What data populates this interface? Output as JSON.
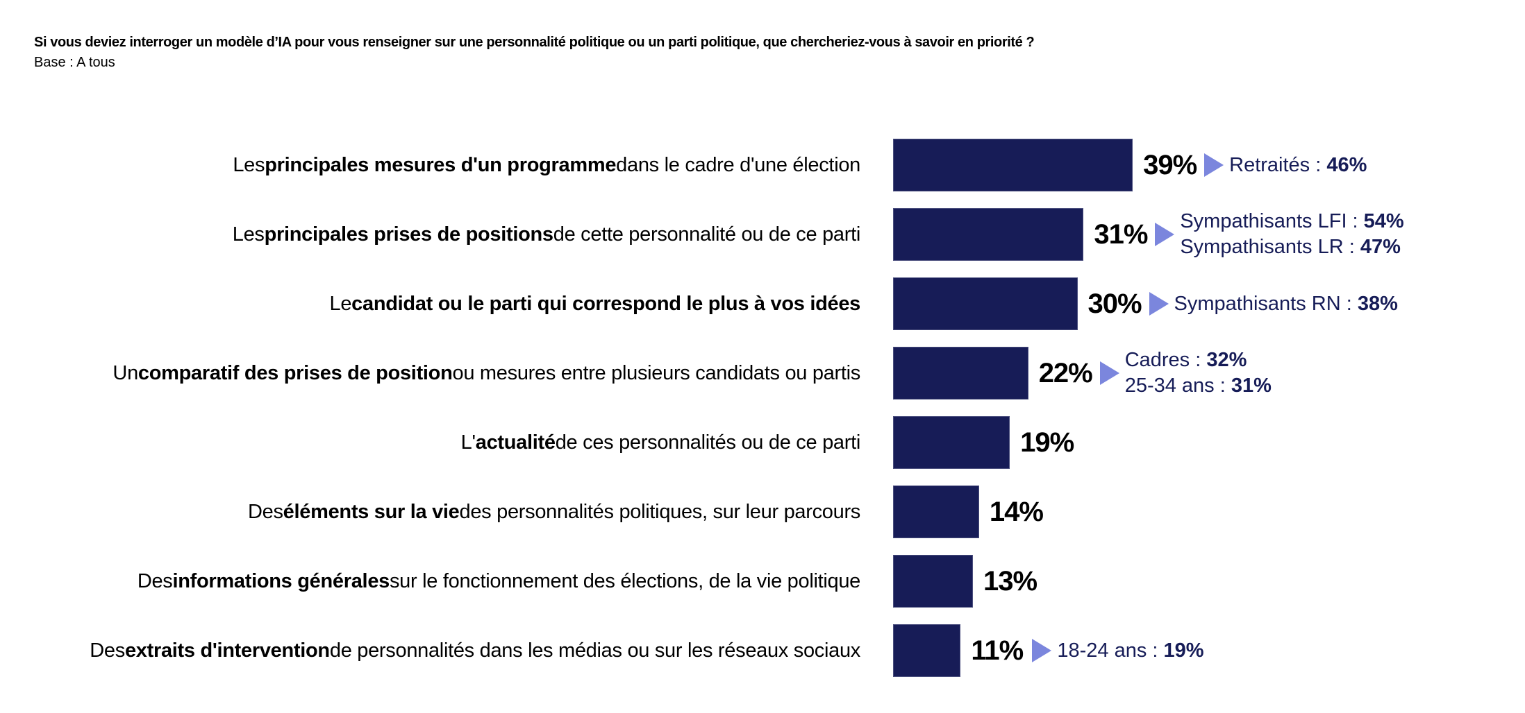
{
  "header": {
    "title": "Si vous deviez interroger un modèle d’IA pour vous renseigner sur une personnalité politique ou un parti politique, que chercheriez-vous à savoir en priorité ?",
    "subtitle": "Base : A tous"
  },
  "colors": {
    "bar": "#171c57",
    "arrow": "#7b86dd",
    "callout_text": "#161c57"
  },
  "chart_data": {
    "type": "bar",
    "orientation": "horizontal",
    "title": "Si vous deviez interroger un modèle d’IA pour vous renseigner sur une personnalité politique ou un parti politique, que chercheriez-vous à savoir en priorité ?",
    "subtitle": "Base : A tous",
    "xlabel": "",
    "ylabel": "",
    "xlim": [
      0,
      100
    ],
    "unit": "%",
    "grid": false,
    "categories": [
      "Les principales mesures d'un programme dans le cadre d'une élection",
      "Les principales prises de positions de cette personnalité ou de ce parti",
      "Le candidat ou le parti qui correspond le plus à vos idées",
      "Un comparatif des prises de position ou mesures entre plusieurs candidats ou partis",
      "L'actualité de ces personnalités ou de ce parti",
      "Des éléments sur la vie des personnalités politiques, sur leur parcours",
      "Des informations générales sur le fonctionnement des élections, de la vie politique",
      "Des extraits d'intervention de personnalités dans les médias ou sur les réseaux sociaux"
    ],
    "values": [
      39,
      31,
      30,
      22,
      19,
      14,
      13,
      11
    ],
    "rows": [
      {
        "label_parts": [
          [
            "Les ",
            false
          ],
          [
            "principales mesures d'un programme",
            true
          ],
          [
            " dans le cadre d'une élection",
            false
          ]
        ],
        "value": 39,
        "value_label": "39%",
        "callouts": [
          {
            "text": "Retraités : ",
            "bold": "46%"
          }
        ]
      },
      {
        "label_parts": [
          [
            "Les ",
            false
          ],
          [
            "principales prises de positions",
            true
          ],
          [
            " de cette personnalité ou de ce parti",
            false
          ]
        ],
        "value": 31,
        "value_label": "31%",
        "callouts": [
          {
            "text": "Sympathisants LFI : ",
            "bold": "54%"
          },
          {
            "text": "Sympathisants LR : ",
            "bold": "47%"
          }
        ]
      },
      {
        "label_parts": [
          [
            "Le ",
            false
          ],
          [
            "candidat ou le parti qui correspond le plus à vos idées",
            true
          ]
        ],
        "value": 30,
        "value_label": "30%",
        "callouts": [
          {
            "text": "Sympathisants RN : ",
            "bold": "38%"
          }
        ]
      },
      {
        "label_parts": [
          [
            "Un ",
            false
          ],
          [
            "comparatif des prises de position",
            true
          ],
          [
            " ou mesures entre plusieurs candidats ou partis",
            false
          ]
        ],
        "value": 22,
        "value_label": "22%",
        "callouts": [
          {
            "text": "Cadres : ",
            "bold": "32%"
          },
          {
            "text": "25-34 ans : ",
            "bold": "31%"
          }
        ]
      },
      {
        "label_parts": [
          [
            "L'",
            false
          ],
          [
            "actualité",
            true
          ],
          [
            " de ces personnalités ou de ce parti",
            false
          ]
        ],
        "value": 19,
        "value_label": "19%",
        "callouts": []
      },
      {
        "label_parts": [
          [
            "Des ",
            false
          ],
          [
            "éléments sur la vie",
            true
          ],
          [
            " des personnalités politiques, sur leur parcours",
            false
          ]
        ],
        "value": 14,
        "value_label": "14%",
        "callouts": []
      },
      {
        "label_parts": [
          [
            "Des ",
            false
          ],
          [
            "informations générales",
            true
          ],
          [
            " sur le fonctionnement des élections, de la vie politique",
            false
          ]
        ],
        "value": 13,
        "value_label": "13%",
        "callouts": []
      },
      {
        "label_parts": [
          [
            "Des ",
            false
          ],
          [
            "extraits d'intervention",
            true
          ],
          [
            " de personnalités dans les médias ou sur les réseaux sociaux",
            false
          ]
        ],
        "value": 11,
        "value_label": "11%",
        "callouts": [
          {
            "text": "18-24 ans : ",
            "bold": "19%"
          }
        ]
      }
    ]
  }
}
